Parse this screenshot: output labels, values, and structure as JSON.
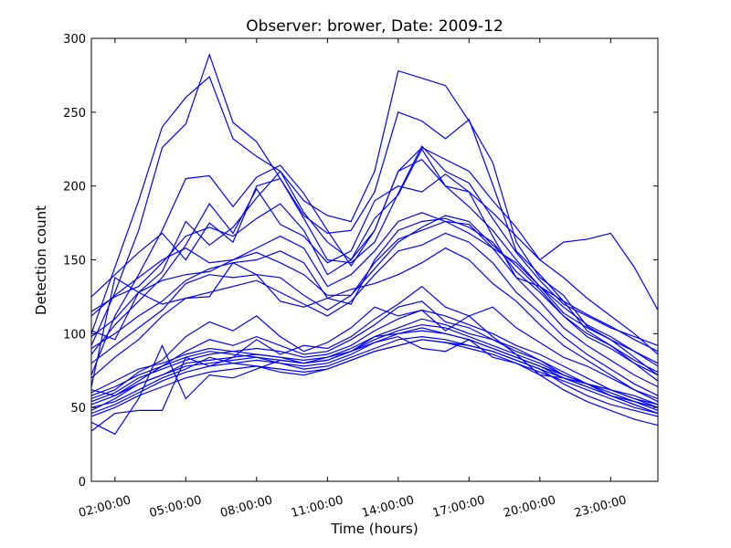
{
  "chart_data": {
    "type": "line",
    "title": "Observer: brower, Date: 2009-12",
    "xlabel": "Time (hours)",
    "ylabel": "Detection count",
    "xlim": [
      1.0,
      25.0
    ],
    "ylim": [
      0,
      300
    ],
    "xticks": [
      2,
      5,
      8,
      11,
      14,
      17,
      20,
      23
    ],
    "xtick_labels": [
      "02:00:00",
      "05:00:00",
      "08:00:00",
      "11:00:00",
      "14:00:00",
      "17:00:00",
      "20:00:00",
      "23:00:00"
    ],
    "yticks": [
      0,
      50,
      100,
      150,
      200,
      250,
      300
    ],
    "ytick_labels": [
      "0",
      "50",
      "100",
      "150",
      "200",
      "250",
      "300"
    ],
    "line_color": "#0000ff",
    "grid": false,
    "x": [
      1,
      2,
      3,
      4,
      5,
      6,
      7,
      8,
      9,
      10,
      11,
      12,
      13,
      14,
      15,
      16,
      17,
      18,
      19,
      20,
      21,
      22,
      23,
      24,
      25
    ],
    "series": [
      {
        "values": [
          100,
          145,
          190,
          240,
          260,
          274,
          232,
          220,
          210,
          190,
          180,
          176,
          210,
          278,
          273,
          268,
          244,
          216,
          162,
          138,
          126,
          105,
          96,
          84,
          72
        ]
      },
      {
        "values": [
          92,
          128,
          170,
          226,
          242,
          289,
          243,
          230,
          205,
          180,
          168,
          170,
          196,
          250,
          244,
          232,
          245,
          201,
          156,
          140,
          122,
          102,
          92,
          80,
          68
        ]
      },
      {
        "values": [
          72,
          112,
          140,
          170,
          205,
          207,
          186,
          206,
          214,
          195,
          170,
          146,
          170,
          210,
          226,
          218,
          210,
          190,
          172,
          150,
          162,
          164,
          168,
          145,
          116
        ]
      },
      {
        "values": [
          125,
          140,
          155,
          168,
          150,
          175,
          162,
          200,
          205,
          178,
          150,
          148,
          162,
          195,
          227,
          210,
          202,
          178,
          155,
          136,
          120,
          112,
          104,
          98,
          92
        ]
      },
      {
        "values": [
          115,
          125,
          132,
          148,
          166,
          172,
          166,
          178,
          188,
          170,
          140,
          150,
          170,
          210,
          218,
          200,
          196,
          182,
          166,
          150,
          138,
          124,
          112,
          100,
          86
        ]
      },
      {
        "values": [
          102,
          96,
          128,
          142,
          176,
          160,
          172,
          192,
          210,
          182,
          162,
          150,
          178,
          194,
          225,
          200,
          186,
          170,
          150,
          132,
          122,
          113,
          105,
          96,
          88
        ]
      },
      {
        "values": [
          86,
          106,
          122,
          138,
          160,
          188,
          168,
          198,
          174,
          166,
          148,
          156,
          190,
          200,
          196,
          208,
          196,
          166,
          138,
          132,
          114,
          104,
          96,
          88,
          78
        ]
      },
      {
        "values": [
          112,
          126,
          138,
          150,
          158,
          148,
          150,
          158,
          166,
          158,
          132,
          140,
          156,
          176,
          182,
          176,
          168,
          158,
          148,
          132,
          118,
          106,
          98,
          88,
          80
        ]
      },
      {
        "values": [
          98,
          110,
          128,
          136,
          140,
          142,
          150,
          155,
          148,
          140,
          126,
          126,
          144,
          162,
          172,
          180,
          176,
          160,
          146,
          130,
          112,
          100,
          92,
          82,
          74
        ]
      },
      {
        "values": [
          90,
          100,
          112,
          122,
          136,
          144,
          148,
          150,
          156,
          148,
          124,
          120,
          150,
          170,
          176,
          178,
          172,
          162,
          142,
          128,
          112,
          98,
          90,
          80,
          72
        ]
      },
      {
        "values": [
          80,
          92,
          104,
          116,
          134,
          140,
          138,
          140,
          138,
          126,
          116,
          126,
          148,
          164,
          170,
          176,
          174,
          158,
          138,
          122,
          104,
          92,
          82,
          72,
          64
        ]
      },
      {
        "values": [
          70,
          84,
          96,
          112,
          124,
          128,
          132,
          136,
          128,
          120,
          112,
          122,
          140,
          156,
          160,
          168,
          162,
          148,
          128,
          114,
          98,
          86,
          76,
          66,
          58
        ]
      },
      {
        "values": [
          64,
          138,
          128,
          120,
          124,
          125,
          148,
          140,
          122,
          118,
          124,
          130,
          134,
          140,
          148,
          158,
          150,
          134,
          122,
          106,
          92,
          82,
          72,
          62,
          54
        ]
      },
      {
        "values": [
          56,
          62,
          74,
          82,
          98,
          108,
          102,
          112,
          98,
          88,
          94,
          104,
          118,
          112,
          116,
          102,
          112,
          98,
          86,
          72,
          62,
          54,
          48,
          42,
          38
        ]
      },
      {
        "values": [
          62,
          58,
          68,
          78,
          88,
          96,
          92,
          98,
          92,
          86,
          88,
          96,
          106,
          118,
          122,
          108,
          104,
          96,
          90,
          82,
          72,
          66,
          58,
          52,
          46
        ]
      },
      {
        "values": [
          54,
          60,
          70,
          76,
          82,
          86,
          88,
          90,
          88,
          84,
          86,
          92,
          102,
          110,
          116,
          112,
          106,
          100,
          92,
          86,
          78,
          70,
          62,
          56,
          50
        ]
      },
      {
        "values": [
          48,
          56,
          66,
          72,
          80,
          82,
          84,
          86,
          84,
          80,
          82,
          88,
          98,
          104,
          110,
          106,
          100,
          96,
          88,
          82,
          74,
          66,
          60,
          54,
          48
        ]
      },
      {
        "values": [
          46,
          52,
          60,
          68,
          74,
          78,
          80,
          82,
          80,
          78,
          80,
          86,
          94,
          100,
          104,
          100,
          96,
          90,
          84,
          78,
          70,
          64,
          58,
          52,
          46
        ]
      },
      {
        "values": [
          58,
          64,
          72,
          78,
          84,
          88,
          86,
          84,
          82,
          80,
          82,
          88,
          96,
          102,
          106,
          104,
          98,
          92,
          86,
          80,
          72,
          66,
          60,
          54,
          50
        ]
      },
      {
        "values": [
          60,
          68,
          76,
          80,
          86,
          90,
          88,
          86,
          84,
          82,
          84,
          90,
          98,
          100,
          102,
          100,
          96,
          90,
          84,
          78,
          72,
          66,
          62,
          56,
          52
        ]
      },
      {
        "values": [
          52,
          58,
          66,
          72,
          78,
          80,
          82,
          84,
          80,
          76,
          78,
          84,
          90,
          96,
          98,
          96,
          92,
          88,
          82,
          76,
          70,
          64,
          58,
          54,
          50
        ]
      },
      {
        "values": [
          44,
          50,
          58,
          64,
          70,
          74,
          76,
          78,
          76,
          74,
          76,
          82,
          88,
          92,
          96,
          94,
          90,
          86,
          80,
          74,
          68,
          62,
          56,
          50,
          46
        ]
      },
      {
        "values": [
          40,
          32,
          56,
          92,
          56,
          72,
          70,
          76,
          82,
          80,
          84,
          88,
          94,
          98,
          90,
          88,
          96,
          84,
          80,
          72,
          70,
          66,
          62,
          58,
          52
        ]
      },
      {
        "values": [
          34,
          46,
          48,
          48,
          84,
          78,
          84,
          96,
          86,
          92,
          90,
          98,
          110,
          120,
          132,
          118,
          112,
          118,
          104,
          94,
          84,
          78,
          70,
          62,
          56
        ]
      },
      {
        "values": [
          50,
          54,
          62,
          70,
          76,
          84,
          80,
          78,
          74,
          72,
          76,
          82,
          88,
          92,
          96,
          94,
          92,
          88,
          82,
          76,
          66,
          58,
          52,
          48,
          44
        ]
      }
    ]
  }
}
